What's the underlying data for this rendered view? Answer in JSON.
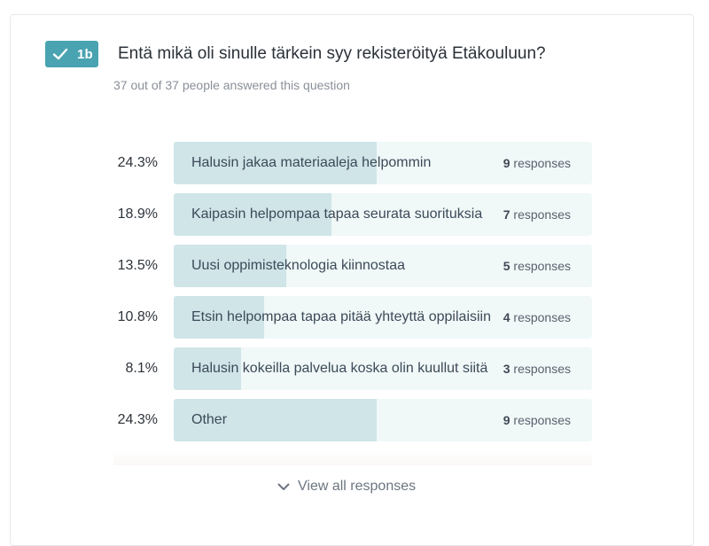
{
  "question": {
    "badge_number": "1b",
    "title": "Entä mikä oli sinulle tärkein syy rekisteröityä Etäkouluun?",
    "subtitle": "37 out of 37 people answered this question",
    "accent_color": "#4aa3b0"
  },
  "answers": [
    {
      "percent": "24.3%",
      "fraction": 0.243,
      "label": "Halusin jakaa materiaaleja helpommin",
      "count": "9",
      "responses_word": "responses"
    },
    {
      "percent": "18.9%",
      "fraction": 0.189,
      "label": "Kaipasin helpompaa tapaa seurata suorituksia",
      "count": "7",
      "responses_word": "responses"
    },
    {
      "percent": "13.5%",
      "fraction": 0.135,
      "label": "Uusi oppimisteknologia kiinnostaa",
      "count": "5",
      "responses_word": "responses"
    },
    {
      "percent": "10.8%",
      "fraction": 0.108,
      "label": "Etsin helpompaa tapaa pitää yhteyttä oppilaisiin",
      "count": "4",
      "responses_word": "responses"
    },
    {
      "percent": "8.1%",
      "fraction": 0.081,
      "label": "Halusin kokeilla palvelua koska olin kuullut siitä",
      "count": "3",
      "responses_word": "responses"
    },
    {
      "percent": "24.3%",
      "fraction": 0.243,
      "label": "Other",
      "count": "9",
      "responses_word": "responses"
    }
  ],
  "view_all": {
    "label": "View all responses",
    "icon": "chevron-down-icon"
  }
}
